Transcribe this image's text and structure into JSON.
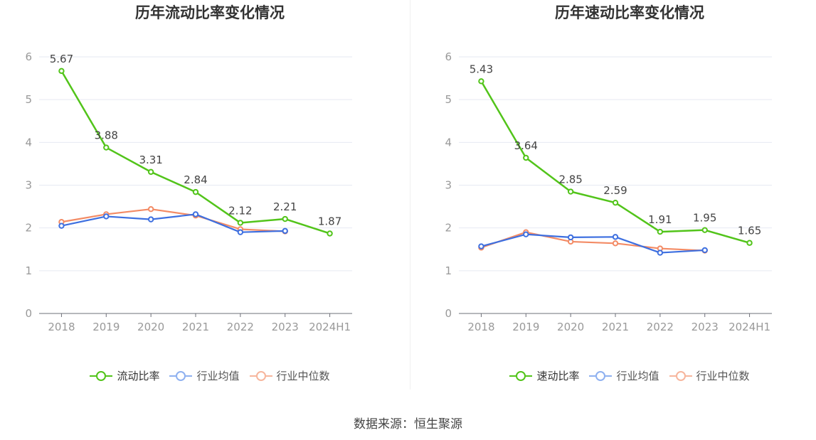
{
  "source": "数据来源：恒生聚源",
  "chart_data": [
    {
      "type": "line",
      "title": "历年流动比率变化情况",
      "categories": [
        "2018",
        "2019",
        "2020",
        "2021",
        "2022",
        "2023",
        "2024H1"
      ],
      "ylim": [
        0,
        6
      ],
      "yticks": [
        0,
        1,
        2,
        3,
        4,
        5,
        6
      ],
      "grid": true,
      "legend_position": "bottom",
      "series": [
        {
          "name": "流动比率",
          "color": "#52c41a",
          "labeled": true,
          "values": [
            5.67,
            3.88,
            3.31,
            2.84,
            2.12,
            2.21,
            1.87
          ]
        },
        {
          "name": "行业均值",
          "color": "#3d6fe0",
          "labeled": false,
          "values": [
            2.05,
            2.27,
            2.2,
            2.32,
            1.9,
            1.93,
            null
          ]
        },
        {
          "name": "行业中位数",
          "color": "#f38b65",
          "labeled": false,
          "values": [
            2.14,
            2.32,
            2.44,
            2.29,
            1.97,
            1.92,
            null
          ]
        }
      ]
    },
    {
      "type": "line",
      "title": "历年速动比率变化情况",
      "categories": [
        "2018",
        "2019",
        "2020",
        "2021",
        "2022",
        "2023",
        "2024H1"
      ],
      "ylim": [
        0,
        6
      ],
      "yticks": [
        0,
        1,
        2,
        3,
        4,
        5,
        6
      ],
      "grid": true,
      "legend_position": "bottom",
      "series": [
        {
          "name": "速动比率",
          "color": "#52c41a",
          "labeled": true,
          "values": [
            5.43,
            3.64,
            2.85,
            2.59,
            1.91,
            1.95,
            1.65
          ]
        },
        {
          "name": "行业均值",
          "color": "#3d6fe0",
          "labeled": false,
          "values": [
            1.57,
            1.85,
            1.78,
            1.79,
            1.42,
            1.48,
            null
          ]
        },
        {
          "name": "行业中位数",
          "color": "#f38b65",
          "labeled": false,
          "values": [
            1.54,
            1.9,
            1.68,
            1.64,
            1.52,
            1.47,
            null
          ]
        }
      ]
    }
  ],
  "legend_colors": {
    "流动比率": "#52c41a",
    "行业均值": "#8fb1f0",
    "行业中位数": "#f7b69d"
  }
}
